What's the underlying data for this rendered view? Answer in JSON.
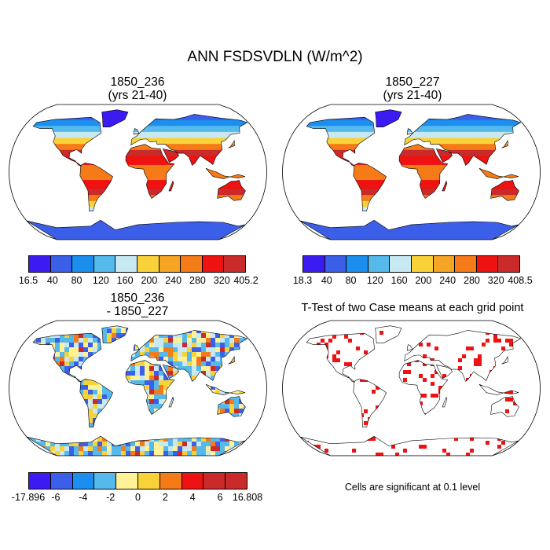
{
  "title": "ANN FSDSVDLN (W/m^2)",
  "panels": {
    "p1": {
      "title1": "1850_236",
      "title2": "(yrs 21-40)"
    },
    "p2": {
      "title1": "1850_227",
      "title2": "(yrs 21-40)"
    },
    "p3": {
      "title1": "1850_236",
      "title2": "- 1850_227"
    },
    "p4": {
      "title1": "T-Test of two Case means at each grid point"
    }
  },
  "colorbars": {
    "cb1": {
      "colors": [
        "#3a1cf2",
        "#3b5fe8",
        "#1c8ef0",
        "#55b9ec",
        "#c8e8f2",
        "#f8d238",
        "#f6a423",
        "#f57a18",
        "#ee1212",
        "#cb2a2a"
      ],
      "labels": [
        "16.5",
        "40",
        "80",
        "120",
        "160",
        "200",
        "240",
        "280",
        "320",
        "405.2"
      ]
    },
    "cb2": {
      "colors": [
        "#3a1cf2",
        "#3b5fe8",
        "#1c8ef0",
        "#55b9ec",
        "#c8e8f2",
        "#f8d238",
        "#f6a423",
        "#f57a18",
        "#ee1212",
        "#cb2a2a"
      ],
      "labels": [
        "18.3",
        "40",
        "80",
        "120",
        "160",
        "200",
        "240",
        "280",
        "320",
        "408.5"
      ]
    },
    "cb3": {
      "colors": [
        "#3a1cf2",
        "#3b5fe8",
        "#1c8ef0",
        "#55b9ec",
        "#fff196",
        "#f8d238",
        "#f57a18",
        "#ee1212",
        "#cb2a2a",
        "#cb2a2a"
      ],
      "labels": [
        "-17.896",
        "-6",
        "-4",
        "-2",
        "0",
        "2",
        "4",
        "6",
        "16.808"
      ]
    }
  },
  "note": "Cells are significant at 0.1 level"
}
